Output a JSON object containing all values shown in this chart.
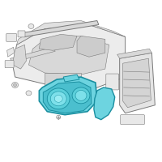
{
  "bg_color": "#ffffff",
  "line_color": "#7a7a7a",
  "highlight_fill": "#6dd4e0",
  "highlight_edge": "#1a8fa0",
  "gray_fill": "#e8e8e8",
  "gray_edge": "#888888",
  "fig_size": [
    2.0,
    2.0
  ],
  "dpi": 100
}
